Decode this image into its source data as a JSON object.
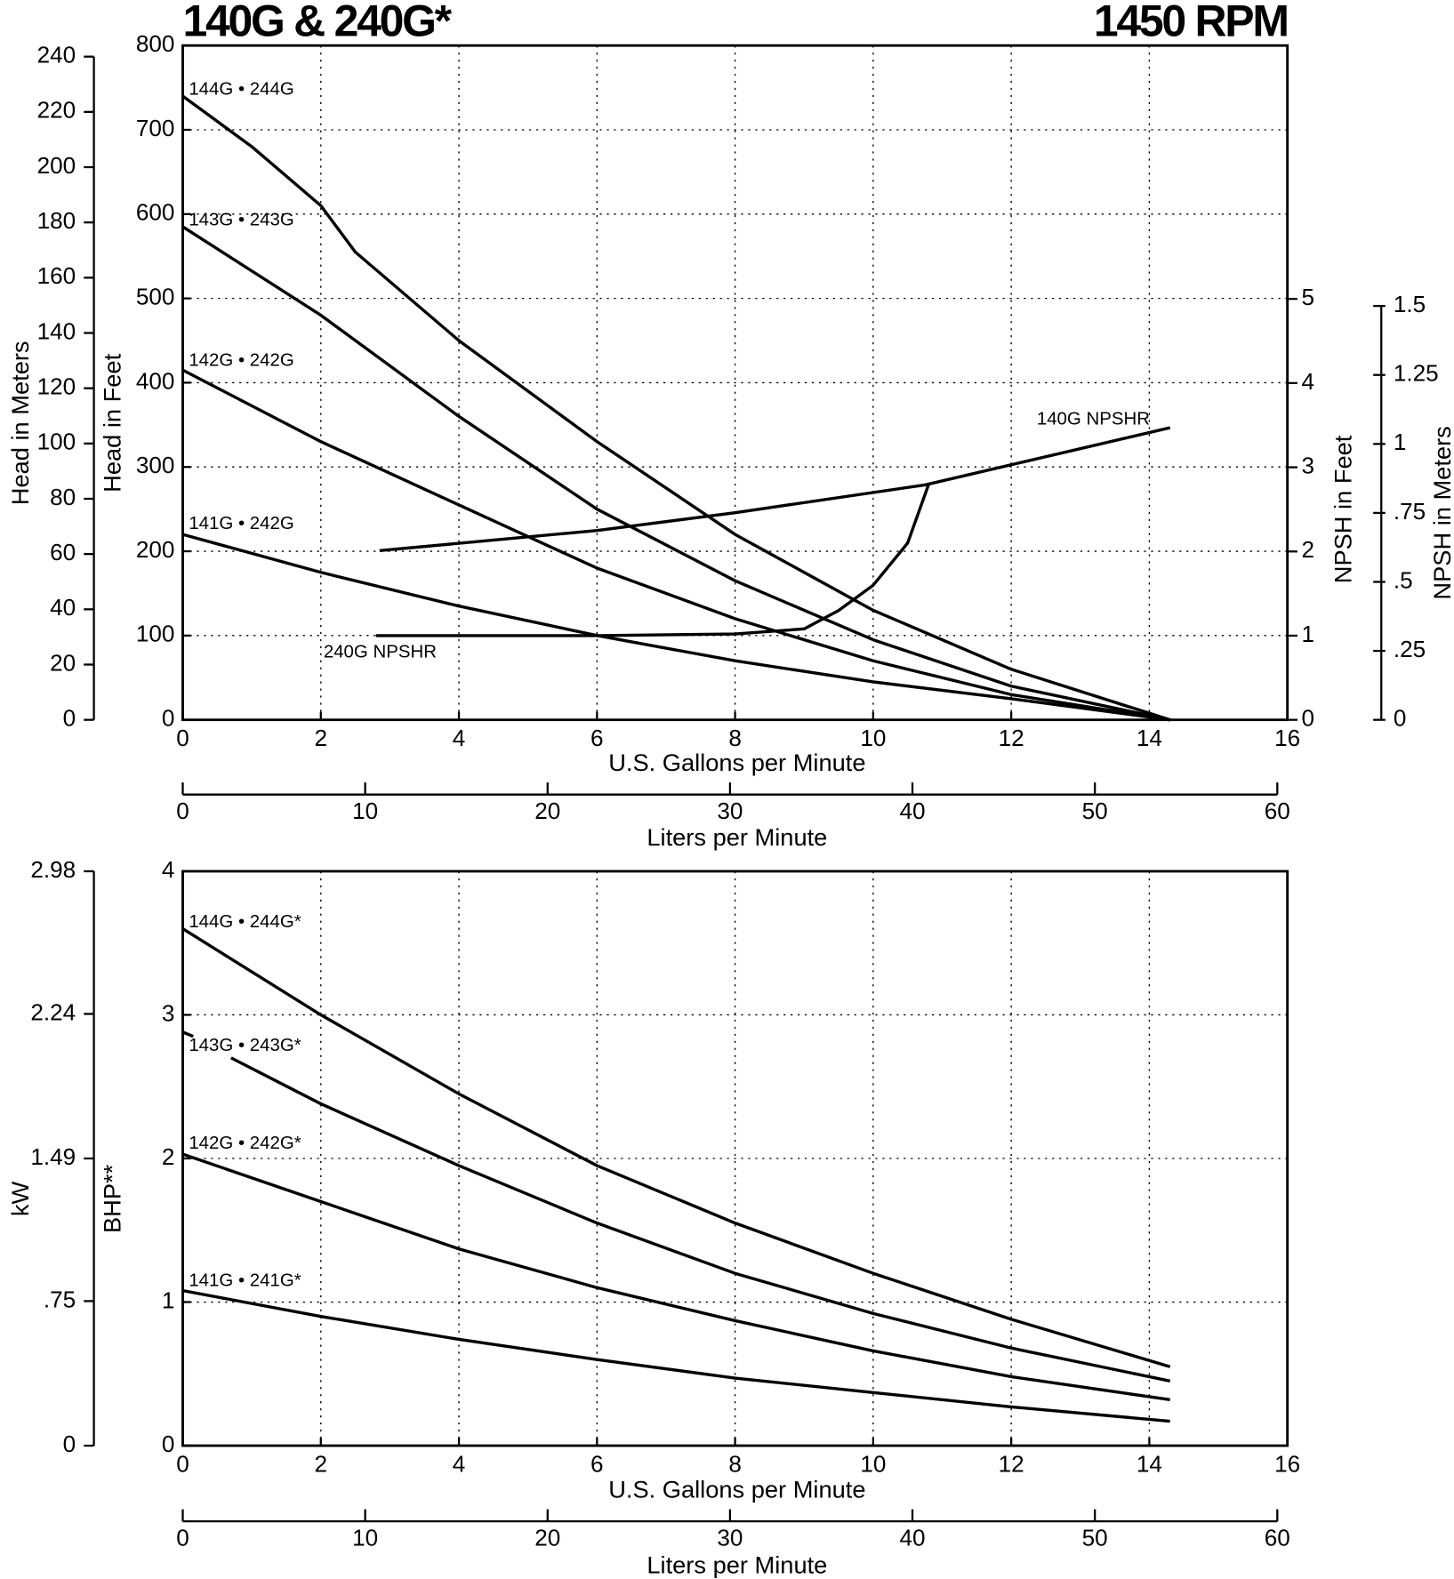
{
  "chart_data": [
    {
      "type": "line",
      "title": "140G & 240G*",
      "subtitle": "1450 RPM",
      "xlabel": "U.S. Gallons per Minute",
      "xlim": [
        0,
        16
      ],
      "xticks": [
        0,
        2,
        4,
        6,
        8,
        10,
        12,
        14,
        16
      ],
      "x2label": "Liters per Minute",
      "x2lim": [
        0,
        60
      ],
      "x2ticks": [
        0,
        10,
        20,
        30,
        40,
        50,
        60
      ],
      "ylabel": "Head in Feet",
      "ylim": [
        0,
        800
      ],
      "yticks": [
        0,
        100,
        200,
        300,
        400,
        500,
        600,
        700,
        800
      ],
      "y3label": "Head in Meters",
      "y3lim": [
        0,
        240
      ],
      "y3ticks": [
        0,
        20,
        40,
        60,
        80,
        100,
        120,
        140,
        160,
        180,
        200,
        220,
        240
      ],
      "y2label": "NPSH in Feet",
      "y2lim": [
        0,
        5
      ],
      "y2ticks": [
        0,
        1,
        2,
        3,
        4,
        5
      ],
      "y4label": "NPSH in Meters",
      "y4lim": [
        0,
        1.5
      ],
      "y4ticks": [
        0,
        {
          "value": 0.25,
          "label": ".25"
        },
        {
          "value": 0.5,
          "label": ".5"
        },
        {
          "value": 0.75,
          "label": ".75"
        },
        1,
        1.25,
        1.5
      ],
      "grid": true,
      "series": [
        {
          "name": "144G • 244G",
          "color": "#000000",
          "x": [
            0,
            1,
            2,
            2.5,
            4,
            6,
            8,
            10,
            12,
            14.3
          ],
          "values": [
            740,
            680,
            610,
            555,
            450,
            330,
            220,
            130,
            60,
            0
          ]
        },
        {
          "name": "143G • 243G",
          "color": "#000000",
          "x": [
            0,
            2,
            4,
            6,
            8,
            10,
            12,
            14.3
          ],
          "values": [
            585,
            480,
            360,
            250,
            165,
            95,
            40,
            0
          ]
        },
        {
          "name": "142G • 242G",
          "color": "#000000",
          "x": [
            0,
            2,
            4,
            6,
            8,
            10,
            12,
            14.3
          ],
          "values": [
            415,
            330,
            255,
            180,
            120,
            70,
            30,
            0
          ]
        },
        {
          "name": "141G • 242G",
          "color": "#000000",
          "x": [
            0,
            2,
            4,
            6,
            8,
            10,
            12,
            14.3
          ],
          "values": [
            220,
            175,
            135,
            100,
            70,
            45,
            25,
            0
          ]
        },
        {
          "name": "140G NPSHR",
          "color": "#000000",
          "axis": "y2",
          "x": [
            2.85,
            6,
            8,
            10.75,
            14.3
          ],
          "values": [
            2.01,
            2.25,
            2.46,
            2.79,
            3.47
          ]
        },
        {
          "name": "240G NPSHR",
          "color": "#000000",
          "axis": "y2",
          "x": [
            2.8,
            6,
            8,
            9,
            9.5,
            10,
            10.5,
            10.8
          ],
          "values": [
            1.0,
            1.0,
            1.02,
            1.08,
            1.3,
            1.6,
            2.1,
            2.79
          ]
        }
      ]
    },
    {
      "type": "line",
      "xlabel": "U.S. Gallons per Minute",
      "xlim": [
        0,
        16
      ],
      "xticks": [
        0,
        2,
        4,
        6,
        8,
        10,
        12,
        14,
        16
      ],
      "x2label": "Liters per Minute",
      "x2lim": [
        0,
        60
      ],
      "x2ticks": [
        0,
        10,
        20,
        30,
        40,
        50,
        60
      ],
      "ylabel": "BHP**",
      "ylim": [
        0,
        4
      ],
      "yticks": [
        0,
        1,
        2,
        3,
        4
      ],
      "y3label": "kW",
      "y3lim": [
        0,
        2.98
      ],
      "y3ticks": [
        0,
        {
          "value": 0.75,
          "label": ".75"
        },
        1.49,
        2.24,
        2.98
      ],
      "grid": true,
      "series": [
        {
          "name": "144G • 244G*",
          "color": "#000000",
          "x": [
            0,
            2,
            4,
            6,
            8,
            10,
            12,
            14.3
          ],
          "values": [
            3.6,
            3.0,
            2.45,
            1.95,
            1.55,
            1.2,
            0.88,
            0.55
          ]
        },
        {
          "name": "143G • 243G*",
          "color": "#000000",
          "x": [
            0,
            0.15,
            0.4,
            0.7,
            2,
            4,
            6,
            8,
            10,
            12,
            14.3
          ],
          "values": [
            2.88,
            2.85,
            null,
            2.7,
            2.38,
            1.95,
            1.55,
            1.2,
            0.92,
            0.68,
            0.45
          ]
        },
        {
          "name": "142G • 242G*",
          "color": "#000000",
          "x": [
            0,
            2,
            4,
            6,
            8,
            10,
            12,
            14.3
          ],
          "values": [
            2.03,
            1.7,
            1.37,
            1.1,
            0.87,
            0.66,
            0.48,
            0.32
          ]
        },
        {
          "name": "141G • 241G*",
          "color": "#000000",
          "x": [
            0,
            2,
            4,
            6,
            8,
            10,
            12,
            14.3
          ],
          "values": [
            1.08,
            0.9,
            0.74,
            0.6,
            0.47,
            0.37,
            0.27,
            0.17
          ]
        }
      ]
    }
  ]
}
